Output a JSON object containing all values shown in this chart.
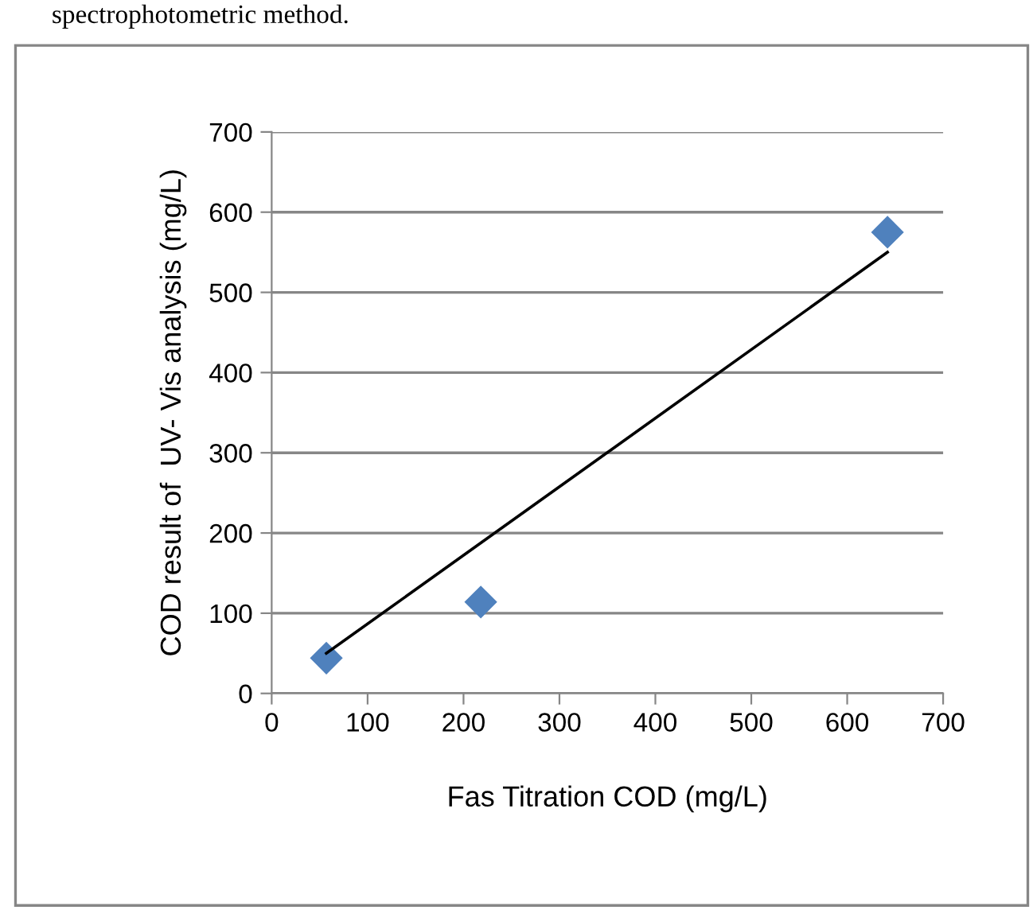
{
  "chart_data": {
    "type": "scatter",
    "xlabel": "Fas Titration COD (mg/L)",
    "ylabel": "COD result of  UV- Vis analysis (mg/L)",
    "annotations": [
      "spectrophotometric method."
    ],
    "series": [
      {
        "color": "#4f81bd",
        "marker": "diamond",
        "x": [
          57,
          218,
          642
        ],
        "values": [
          44,
          114,
          575
        ]
      },
      {
        "type": "line",
        "color": "#000000",
        "marker": "none",
        "line_style": "solid",
        "x": [
          57,
          642
        ],
        "values": [
          50,
          550
        ]
      }
    ],
    "xlim": [
      0,
      700
    ],
    "xticks": [
      0,
      100,
      200,
      300,
      400,
      500,
      600,
      700
    ],
    "ylim": [
      0,
      700
    ],
    "yticks": [
      0,
      100,
      200,
      300,
      400,
      500,
      600,
      700
    ],
    "grid": "y",
    "legend": false
  }
}
